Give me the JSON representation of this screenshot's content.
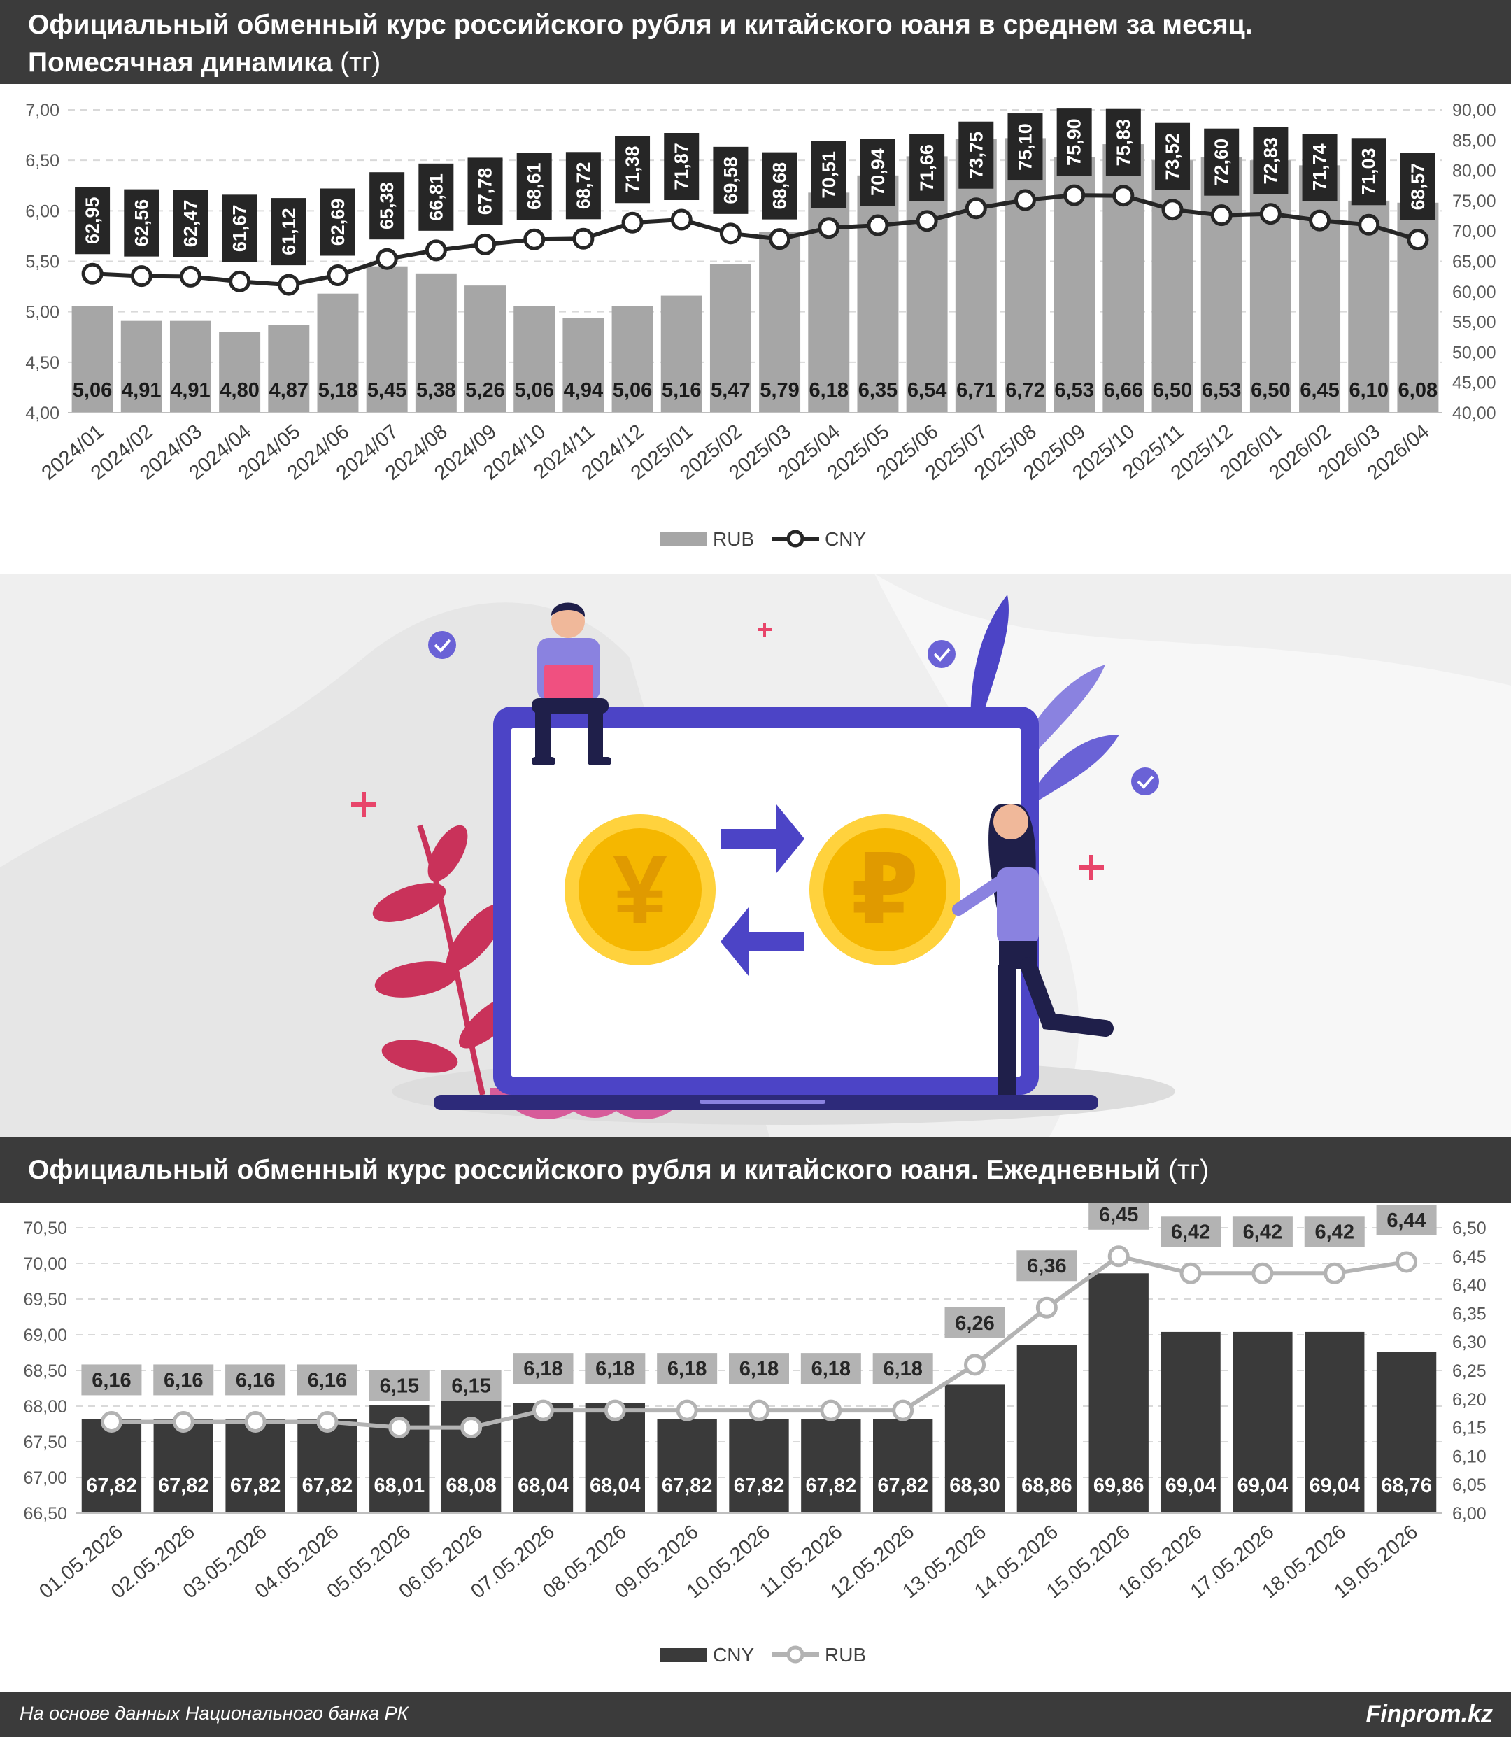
{
  "chart1": {
    "title_line1": "Официальный обменный курс российского рубля и китайского юаня в среднем за месяц.",
    "title_line2": "Помесячная динамика",
    "title_unit": "(тг)",
    "chart_data": {
      "type": "bar",
      "categories": [
        "2024/01",
        "2024/02",
        "2024/03",
        "2024/04",
        "2024/05",
        "2024/06",
        "2024/07",
        "2024/08",
        "2024/09",
        "2024/10",
        "2024/11",
        "2024/12",
        "2025/01",
        "2025/02",
        "2025/03",
        "2025/04",
        "2025/05",
        "2025/06",
        "2025/07",
        "2025/08",
        "2025/09",
        "2025/10",
        "2025/11",
        "2025/12",
        "2026/01",
        "2026/02",
        "2026/03",
        "2026/04"
      ],
      "series": [
        {
          "name": "RUB",
          "type": "bar",
          "axis": "left",
          "color": "#a6a6a6",
          "values": [
            5.06,
            4.91,
            4.91,
            4.8,
            4.87,
            5.18,
            5.45,
            5.38,
            5.26,
            5.06,
            4.94,
            5.06,
            5.16,
            5.47,
            5.79,
            6.18,
            6.35,
            6.54,
            6.71,
            6.72,
            6.53,
            6.66,
            6.5,
            6.53,
            6.5,
            6.45,
            6.1,
            6.08
          ],
          "labels": [
            "5,06",
            "4,91",
            "4,91",
            "4,80",
            "4,87",
            "5,18",
            "5,45",
            "5,38",
            "5,26",
            "5,06",
            "4,94",
            "5,06",
            "5,16",
            "5,47",
            "5,79",
            "6,18",
            "6,35",
            "6,54",
            "6,71",
            "6,72",
            "6,53",
            "6,66",
            "6,50",
            "6,53",
            "6,50",
            "6,45",
            "6,10",
            "6,08"
          ]
        },
        {
          "name": "CNY",
          "type": "line",
          "axis": "right",
          "color": "#262626",
          "values": [
            62.95,
            62.56,
            62.47,
            61.67,
            61.12,
            62.69,
            65.38,
            66.81,
            67.78,
            68.61,
            68.72,
            71.38,
            71.87,
            69.58,
            68.68,
            70.51,
            70.94,
            71.66,
            73.75,
            75.1,
            75.9,
            75.83,
            73.52,
            72.6,
            72.83,
            71.74,
            71.03,
            68.57
          ],
          "labels": [
            "62,95",
            "62,56",
            "62,47",
            "61,67",
            "61,12",
            "62,69",
            "65,38",
            "66,81",
            "67,78",
            "68,61",
            "68,72",
            "71,38",
            "71,87",
            "69,58",
            "68,68",
            "70,51",
            "70,94",
            "71,66",
            "73,75",
            "75,10",
            "75,90",
            "75,83",
            "73,52",
            "72,60",
            "72,83",
            "71,74",
            "71,03",
            "68,57"
          ]
        }
      ],
      "y_left": {
        "min": 4.0,
        "max": 7.0,
        "ticks": [
          "4,00",
          "4,50",
          "5,00",
          "5,50",
          "6,00",
          "6,50",
          "7,00"
        ]
      },
      "y_right": {
        "min": 40,
        "max": 90,
        "ticks": [
          "40,00",
          "45,00",
          "50,00",
          "55,00",
          "60,00",
          "65,00",
          "70,00",
          "75,00",
          "80,00",
          "85,00",
          "90,00"
        ]
      },
      "grid": true,
      "legend": {
        "position": "bottom",
        "items": [
          "RUB",
          "CNY"
        ]
      }
    }
  },
  "chart2": {
    "title": "Официальный обменный курс российского рубля и китайского юаня. Ежедневный",
    "title_unit": "(тг)",
    "chart_data": {
      "type": "bar",
      "categories": [
        "01.05.2026",
        "02.05.2026",
        "03.05.2026",
        "04.05.2026",
        "05.05.2026",
        "06.05.2026",
        "07.05.2026",
        "08.05.2026",
        "09.05.2026",
        "10.05.2026",
        "11.05.2026",
        "12.05.2026",
        "13.05.2026",
        "14.05.2026",
        "15.05.2026",
        "16.05.2026",
        "17.05.2026",
        "18.05.2026",
        "19.05.2026"
      ],
      "series": [
        {
          "name": "CNY",
          "type": "bar",
          "axis": "left",
          "color": "#3a3a3a",
          "values": [
            67.82,
            67.82,
            67.82,
            67.82,
            68.01,
            68.08,
            68.04,
            68.04,
            67.82,
            67.82,
            67.82,
            67.82,
            68.3,
            68.86,
            69.86,
            69.04,
            69.04,
            69.04,
            68.76
          ],
          "labels": [
            "67,82",
            "67,82",
            "67,82",
            "67,82",
            "68,01",
            "68,08",
            "68,04",
            "68,04",
            "67,82",
            "67,82",
            "67,82",
            "67,82",
            "68,30",
            "68,86",
            "69,86",
            "69,04",
            "69,04",
            "69,04",
            "68,76"
          ]
        },
        {
          "name": "RUB",
          "type": "line",
          "axis": "right",
          "color": "#b3b3b3",
          "values": [
            6.16,
            6.16,
            6.16,
            6.16,
            6.15,
            6.15,
            6.18,
            6.18,
            6.18,
            6.18,
            6.18,
            6.18,
            6.26,
            6.36,
            6.45,
            6.42,
            6.42,
            6.42,
            6.44
          ],
          "labels": [
            "6,16",
            "6,16",
            "6,16",
            "6,16",
            "6,15",
            "6,15",
            "6,18",
            "6,18",
            "6,18",
            "6,18",
            "6,18",
            "6,18",
            "6,26",
            "6,36",
            "6,45",
            "6,42",
            "6,42",
            "6,42",
            "6,44"
          ]
        }
      ],
      "y_left": {
        "min": 66.5,
        "max": 70.5,
        "ticks": [
          "66,50",
          "67,00",
          "67,50",
          "68,00",
          "68,50",
          "69,00",
          "69,50",
          "70,00",
          "70,50"
        ]
      },
      "y_right": {
        "min": 6.0,
        "max": 6.5,
        "ticks": [
          "6,00",
          "6,05",
          "6,10",
          "6,15",
          "6,20",
          "6,25",
          "6,30",
          "6,35",
          "6,40",
          "6,45",
          "6,50"
        ]
      },
      "grid": true,
      "legend": {
        "position": "bottom",
        "items": [
          "CNY",
          "RUB"
        ]
      }
    }
  },
  "illustration": {
    "coin_left_symbol": "¥",
    "coin_right_symbol": "₽",
    "colors": {
      "frame": "#4c44c6",
      "coin": "#f5b700",
      "coin_outer": "#ffd23d",
      "leaf": "#c9325a",
      "bg": "#efefef"
    }
  },
  "footer": {
    "source": "На основе данных Национального банка РК",
    "brand": "Finprom.kz"
  }
}
